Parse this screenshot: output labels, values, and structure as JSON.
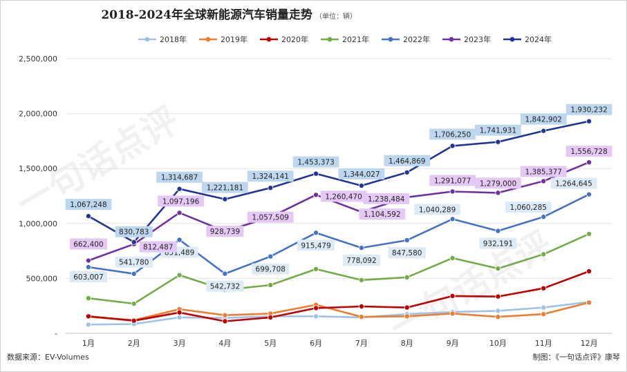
{
  "chart_data": {
    "type": "line",
    "title": "2018-2024年全球新能源汽车销量走势",
    "title_unit": "（单位：辆）",
    "categories": [
      "1月",
      "2月",
      "3月",
      "4月",
      "5月",
      "6月",
      "7月",
      "8月",
      "9月",
      "10月",
      "11月",
      "12月"
    ],
    "ylim": [
      0,
      2500000
    ],
    "yticks": [
      0,
      500000,
      1000000,
      1500000,
      2000000,
      2500000
    ],
    "ytick_labels": [
      "-",
      "500,000",
      "1,000,000",
      "1,500,000",
      "2,000,000",
      "2,500,000"
    ],
    "grid": true,
    "legend_position": "top",
    "series": [
      {
        "name": "2018年",
        "color": "#9dc3e6",
        "values": [
          80000,
          85000,
          145000,
          140000,
          155000,
          155000,
          145000,
          175000,
          195000,
          205000,
          235000,
          285000
        ]
      },
      {
        "name": "2019年",
        "color": "#ed7d31",
        "values": [
          150000,
          120000,
          220000,
          165000,
          180000,
          260000,
          150000,
          155000,
          180000,
          150000,
          175000,
          280000
        ]
      },
      {
        "name": "2020年",
        "color": "#c00000",
        "values": [
          155000,
          115000,
          190000,
          110000,
          145000,
          230000,
          245000,
          235000,
          340000,
          335000,
          410000,
          565000
        ]
      },
      {
        "name": "2021年",
        "color": "#70ad47",
        "values": [
          320000,
          270000,
          530000,
          395000,
          440000,
          585000,
          485000,
          510000,
          685000,
          590000,
          720000,
          905000
        ]
      },
      {
        "name": "2022年",
        "color": "#4472c4",
        "values": [
          603007,
          541780,
          851489,
          542732,
          699708,
          915479,
          778092,
          847580,
          1040289,
          932191,
          1060285,
          1264645
        ],
        "labels": [
          "603,007",
          "541,780",
          "851,489",
          "542,732",
          "699,708",
          "915,479",
          "778,092",
          "847,580",
          "1,040,289",
          "932,191",
          "1,060,285",
          "1,264,645"
        ]
      },
      {
        "name": "2023年",
        "color": "#7030a0",
        "values": [
          662400,
          812487,
          1097196,
          928739,
          1057509,
          1260470,
          1104592,
          1238484,
          1291077,
          1279000,
          1385377,
          1556728
        ],
        "labels": [
          "662,400",
          "812,487",
          "1,097,196",
          "928,739",
          "1,057,509",
          "1,260,470",
          "1,104,592",
          "1,238,484",
          "1,291,077",
          "1,279,000",
          "1,385,377",
          "1,556,728"
        ]
      },
      {
        "name": "2024年",
        "color": "#203594",
        "values": [
          1067248,
          830783,
          1314687,
          1221181,
          1324141,
          1453373,
          1344027,
          1464869,
          1706250,
          1741931,
          1842902,
          1930232
        ],
        "labels": [
          "1,067,248",
          "830,783",
          "1,314,687",
          "1,221,181",
          "1,324,141",
          "1,453,373",
          "1,344,027",
          "1,464,869",
          "1,706,250",
          "1,741,931",
          "1,842,902",
          "1,930,232"
        ]
      }
    ],
    "source_note": "数据来源：EV-Volumes",
    "credit_note": "制图：《一句话点评》康琴",
    "watermark_text": "一句话点评"
  }
}
